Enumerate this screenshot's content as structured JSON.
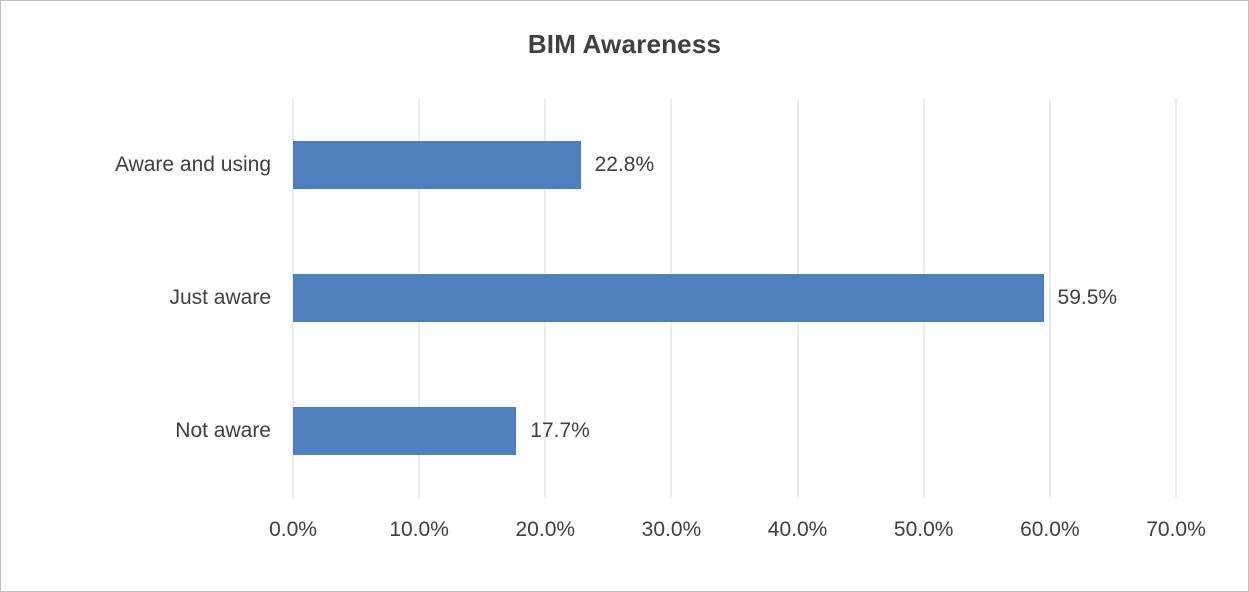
{
  "chart_data": {
    "type": "bar",
    "orientation": "horizontal",
    "title": "BIM Awareness",
    "categories": [
      "Aware and using",
      "Just aware",
      "Not aware"
    ],
    "values": [
      22.8,
      59.5,
      17.7
    ],
    "data_labels": [
      "22.8%",
      "59.5%",
      "17.7%"
    ],
    "xlim": [
      0,
      70
    ],
    "tick_step": 10,
    "x_tick_labels": [
      "0.0%",
      "10.0%",
      "20.0%",
      "30.0%",
      "40.0%",
      "50.0%",
      "60.0%",
      "70.0%"
    ],
    "xlabel": "",
    "ylabel": "",
    "grid": true,
    "legend": false,
    "colors": {
      "bar": "#4e80bd",
      "gridline": "#d9d9d9",
      "text": "#404040",
      "frame_border": "#bfbfbf",
      "background": "#ffffff"
    }
  }
}
